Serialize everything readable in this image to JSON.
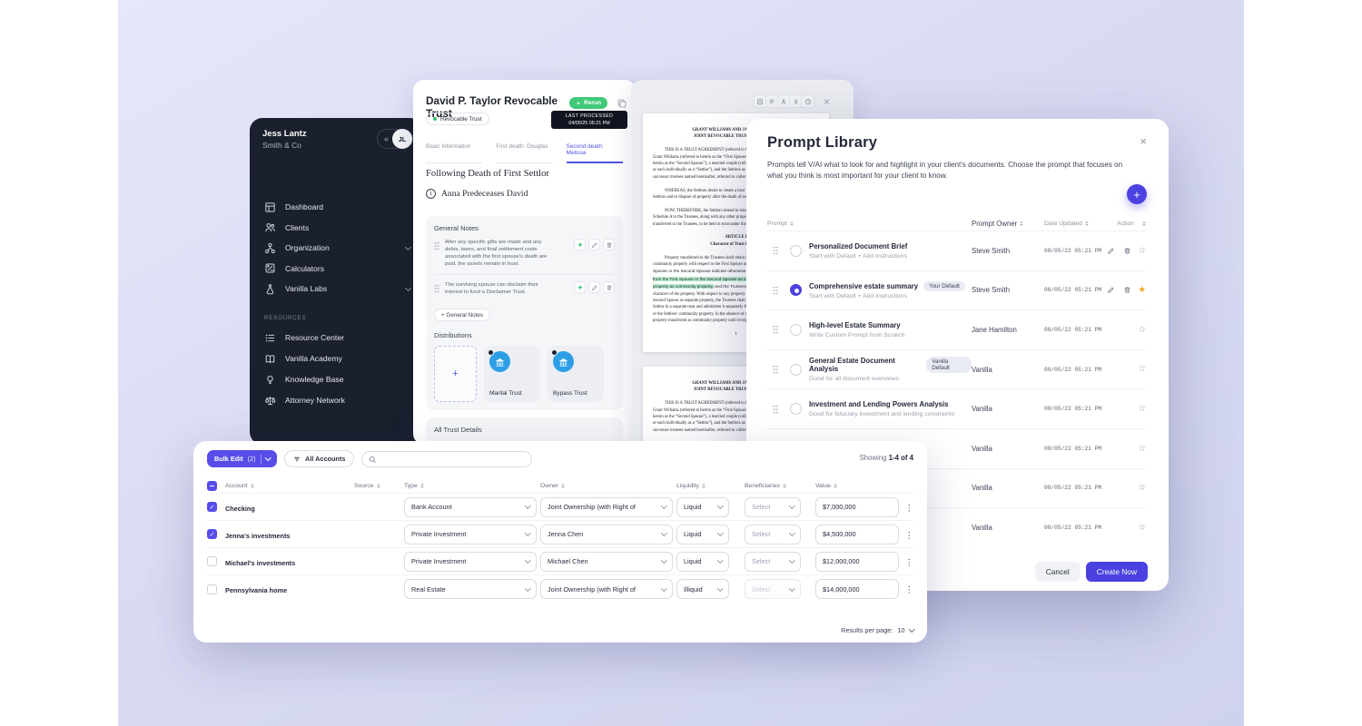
{
  "colors": {
    "accent": "#4f46e5",
    "accent_button": "#564de8",
    "green": "#2fbf71",
    "rerun_green": "#41c878",
    "star_gold": "#f0a31a",
    "sidebar_bg": "#1b202e",
    "background": "#d9dbf3",
    "highlight": "#b9f0d0"
  },
  "sidebar": {
    "user_name": "Jess Lantz",
    "company": "Smith & Co",
    "avatar_initials": "JL",
    "collapse_glyph": "«",
    "items": [
      {
        "label": "Dashboard",
        "icon": "dashboard-icon",
        "chevron": false
      },
      {
        "label": "Clients",
        "icon": "clients-icon",
        "chevron": false
      },
      {
        "label": "Organization",
        "icon": "organization-icon",
        "chevron": true
      },
      {
        "label": "Calculators",
        "icon": "calculator-icon",
        "chevron": false
      },
      {
        "label": "Vanilla Labs",
        "icon": "flask-icon",
        "chevron": true
      }
    ],
    "section_label": "RESOURCES",
    "resource_items": [
      {
        "label": "Resource Center",
        "icon": "list-icon",
        "chevron": false
      },
      {
        "label": "Vanilla Academy",
        "icon": "book-icon",
        "chevron": false
      },
      {
        "label": "Knowledge Base",
        "icon": "bulb-icon",
        "chevron": false
      },
      {
        "label": "Attorney Network",
        "icon": "scales-icon",
        "chevron": false
      }
    ]
  },
  "trust_panel": {
    "title": "David P. Taylor Revocable Trust",
    "badge": "Revocable Trust",
    "rerun_label": "Rerun",
    "last_processed_label": "LAST PROCESSED",
    "last_processed_value": "04/05/25 05:21 PM",
    "tabs": [
      {
        "label": "Basic Information",
        "active": false
      },
      {
        "label": "First death: Douglas",
        "active": false
      },
      {
        "label": "Second death: Melissa",
        "active": true
      }
    ],
    "section_heading": "Following Death of First Settlor",
    "scenario_number": "1",
    "scenario": "Anna Predeceases David",
    "general_notes": {
      "title": "General Notes",
      "notes": [
        "After any specific gifts are made and any debts, taxes, and final settlement costs associated with the first spouse's death are paid, the assets remain in trust.",
        "The surviving spouse can disclaim their interest to fund a Disclaimer Trust."
      ],
      "add_label": "+ General Notes"
    },
    "distributions": {
      "title": "Distributions",
      "add_glyph": "+",
      "cards": [
        "Marital Trust",
        "Bypass Trust"
      ]
    },
    "all_trust_details_title": "All Trust Details"
  },
  "document_panel": {
    "page1_lines": [
      {
        "t": "GRANT WILLIAMS AND JAMIE WILLIAMS",
        "a": "c",
        "b": true
      },
      {
        "t": "JOINT REVOCABLE TRUST AGREEMENT",
        "a": "c",
        "b": true
      },
      {
        "gap": true
      },
      {
        "t": "THIS IS A TRUST AGREEMENT (referred to herein as this “Agreement”) made between",
        "i": true
      },
      {
        "t": "Grant Williams (referred to herein as the “First Spouse”) and Jamie Williams (referred to"
      },
      {
        "t": "herein as the “Second Spouse”), a married couple (collectively referred to as the “Settlors”,"
      },
      {
        "t": "or each individually as a “Settlor”), and the Settlors as initial trustees (together with any"
      },
      {
        "t": "successor trustees named hereinafter, referred to collectively as the “Trustees”)."
      },
      {
        "gap": true
      },
      {
        "t": "WHEREAS, the Settlors desire to create a trust to hold and manage the property of the",
        "i": true
      },
      {
        "t": "Settlors and to dispose of property after the death of each Settlor; and"
      },
      {
        "gap": true
      },
      {
        "t": "NOW, THEREFORE, the Settlors intend to transfer the property described on",
        "i": true
      },
      {
        "t": "Schedule A to the Trustees, along with any other property that may hereafter be"
      },
      {
        "t": "transferred to the Trustees, to be held in trust under the terms of this Agreement."
      },
      {
        "gap": true
      },
      {
        "t": "ARTICLE I",
        "a": "c",
        "b": true
      },
      {
        "t": "Character of Trust Property",
        "a": "c",
        "b": true
      },
      {
        "gap": true
      },
      {
        "t": "Property transferred to the Trustees shall retain its character as separate property or",
        "i": true
      },
      {
        "t": "community property with respect to the First Spouse and the Second Spouse unless the First"
      },
      {
        "pre": "Spouse or the Second Spouse indicate otherwise. ",
        "hl": "The Trustees shall accept transfers",
        "post": ""
      },
      {
        "pre": "",
        "hl": "from the First Spouse or the Second Spouse as to which no indication is made of the",
        "post": ""
      },
      {
        "pre": "",
        "hl": "property as community property,",
        "post": " and the Trustees shall have no duty to inquire into the"
      },
      {
        "t": "character of the property.  With respect to any property transferred by the First Spouse or"
      },
      {
        "t": "Second Spouse as separate property, the Trustees shall hold such property of each"
      },
      {
        "t": "Settlor in a separate trust and administer it separately from the other Settlor's"
      },
      {
        "t": "or the Settlors' community property.  In the absence of notice, the Trustees may treat"
      },
      {
        "t": "property transferred as community property until receipt of notice to the contrary."
      },
      {
        "gap": true
      },
      {
        "t": "1",
        "a": "c"
      }
    ],
    "page2_lines": [
      {
        "t": "GRANT WILLIAMS AND JAMIE WILLIAMS",
        "a": "c",
        "b": true
      },
      {
        "t": "JOINT REVOCABLE TRUST AGREEMENT",
        "a": "c",
        "b": true
      },
      {
        "gap": true
      },
      {
        "t": "THIS IS A TRUST AGREEMENT (referred to herein as this “Agreement”) made between",
        "i": true
      },
      {
        "t": "Grant Williams (referred to herein as the “First Spouse”) and Jamie Williams (referred to"
      },
      {
        "t": "herein as the “Second Spouse”), a married couple (collectively referred to as the “Settlors”,"
      },
      {
        "t": "or each individually as a “Settlor”), and the Settlors as initial trustees (together with any"
      },
      {
        "t": "successor trustees named hereinafter, referred to collectively as the “Trustees”)."
      }
    ]
  },
  "prompt_library": {
    "title": "Prompt Library",
    "description": "Prompts tell V/AI what to look for and highlight in your client's documents. Choose the prompt that focuses on what you think is most important for your client to know.",
    "plus_glyph": "+",
    "close_glyph": "×",
    "columns": [
      "Prompt",
      "Prompt Owner",
      "Date Updated",
      "Action"
    ],
    "rows": [
      {
        "name": "Personalized Document Brief",
        "sub": "Start with Default + Add Instructions",
        "badge": "",
        "owner": "Steve Smith",
        "date": "08/05/22 05:21 PM",
        "selected": false,
        "can_edit": true,
        "star": "outline"
      },
      {
        "name": "Comprehensive estate summary",
        "sub": "Start with Default + Add Instructions",
        "badge": "Your Default",
        "owner": "Steve Smith",
        "date": "08/05/22 05:21 PM",
        "selected": true,
        "can_edit": true,
        "star": "filled"
      },
      {
        "name": "High-level Estate Summary",
        "sub": "Write Custom Prompt from Scratch",
        "badge": "",
        "owner": "Jane Hamilton",
        "date": "08/05/22 05:21 PM",
        "selected": false,
        "can_edit": false,
        "star": "outline"
      },
      {
        "name": "General Estate Document Analysis",
        "sub": "Good for all document overviews",
        "badge": "Vanilla Default",
        "owner": "Vanilla",
        "date": "08/05/22 05:21 PM",
        "selected": false,
        "can_edit": false,
        "star": "outline"
      },
      {
        "name": "Investment and Lending Powers Analysis",
        "sub": "Good for fiduciary investment and lending constraints",
        "badge": "",
        "owner": "Vanilla",
        "date": "08/05/22 05:21 PM",
        "selected": false,
        "can_edit": false,
        "star": "outline"
      },
      {
        "name": "",
        "sub": "",
        "badge": "",
        "owner": "Vanilla",
        "date": "08/05/22 05:21 PM",
        "selected": false,
        "can_edit": false,
        "star": "outline"
      },
      {
        "name": "",
        "sub": "",
        "badge": "",
        "owner": "Vanilla",
        "date": "08/05/22 05:21 PM",
        "selected": false,
        "can_edit": false,
        "star": "outline"
      },
      {
        "name": "",
        "sub": "",
        "badge": "",
        "owner": "Vanilla",
        "date": "08/05/22 05:21 PM",
        "selected": false,
        "can_edit": false,
        "star": "outline"
      }
    ],
    "cancel_label": "Cancel",
    "create_label": "Create Now"
  },
  "accounts_panel": {
    "bulk_edit_label": "Bulk Edit",
    "bulk_edit_count": "(2)",
    "filter_label": "All Accounts",
    "showing_prefix": "Showing",
    "showing_value": "1-4 of 4",
    "columns": [
      "Account",
      "Source",
      "Type",
      "Owner",
      "Liquidity",
      "Beneficiaries",
      "Value"
    ],
    "rows": [
      {
        "name": "Checking",
        "checked": true,
        "type": "Bank Account",
        "owner": "Joint Ownership (with Right of",
        "liquidity": "Liquid",
        "beneficiaries": "Select",
        "value": "$7,000,000",
        "ben_disabled": false
      },
      {
        "name": "Jenna's investments",
        "checked": true,
        "type": "Private Investment",
        "owner": "Jenna Chen",
        "liquidity": "Liquid",
        "beneficiaries": "Select",
        "value": "$4,500,000",
        "ben_disabled": false
      },
      {
        "name": "Michael's investments",
        "checked": false,
        "type": "Private Investment",
        "owner": "Michael Chen",
        "liquidity": "Liquid",
        "beneficiaries": "Select",
        "value": "$12,000,000",
        "ben_disabled": false
      },
      {
        "name": "Pennsylvania home",
        "checked": false,
        "type": "Real Estate",
        "owner": "Joint Ownership (with Right of",
        "liquidity": "Illiquid",
        "beneficiaries": "Select",
        "value": "$14,000,000",
        "ben_disabled": true
      }
    ],
    "results_per_page_label": "Results per page:",
    "results_per_page_value": "10"
  }
}
